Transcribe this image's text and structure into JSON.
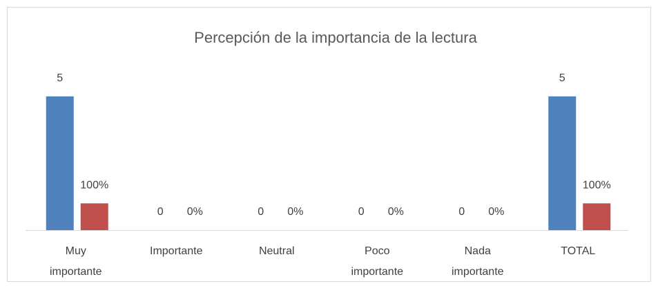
{
  "chart_data": {
    "type": "bar",
    "title": "Percepción de la importancia de la lectura",
    "categories": [
      "Muy importante",
      "Importante",
      "Neutral",
      "Poco importante",
      "Nada importante",
      "TOTAL"
    ],
    "series": [
      {
        "color": "#4f81bd",
        "values": [
          5,
          0,
          0,
          0,
          0,
          5
        ]
      },
      {
        "color": "#c0504d",
        "axis": "y2",
        "values": [
          100,
          0,
          0,
          0,
          0,
          100
        ],
        "value_labels": [
          "100%",
          "0%",
          "0%",
          "0%",
          "0%",
          "100%"
        ]
      }
    ],
    "ylim": [
      0,
      6
    ],
    "y2lim": [
      0,
      600
    ]
  }
}
